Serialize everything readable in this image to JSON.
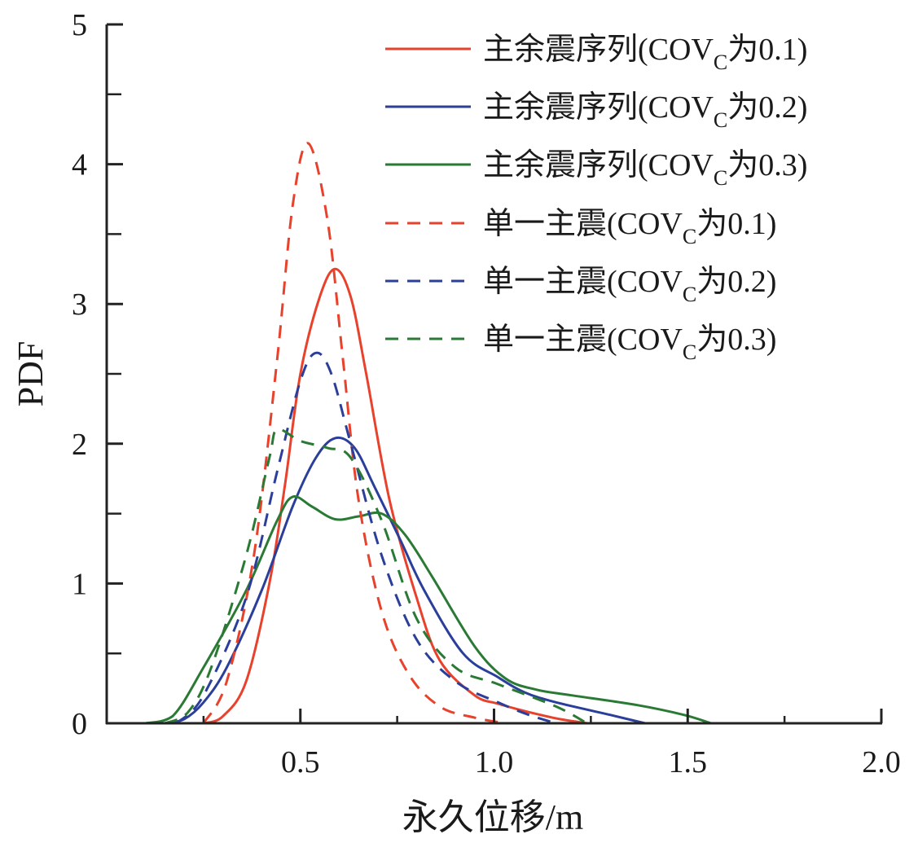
{
  "chart_data": {
    "type": "line",
    "title": "",
    "xlabel": "永久位移/m",
    "ylabel": "PDF",
    "xlim": [
      0,
      2.0
    ],
    "ylim": [
      0,
      5
    ],
    "grid": false,
    "legend_position": "top-right",
    "x_ticks": [
      {
        "value": 0.5,
        "label": "0.5"
      },
      {
        "value": 1.0,
        "label": "1.0"
      },
      {
        "value": 1.5,
        "label": "1.5"
      },
      {
        "value": 2.0,
        "label": "2.0"
      }
    ],
    "x_minor_ticks": [
      0.25,
      0.75,
      1.25,
      1.75
    ],
    "y_ticks": [
      {
        "value": 0,
        "label": "0"
      },
      {
        "value": 1,
        "label": "1"
      },
      {
        "value": 2,
        "label": "2"
      },
      {
        "value": 3,
        "label": "3"
      },
      {
        "value": 4,
        "label": "4"
      },
      {
        "value": 5,
        "label": "5"
      }
    ],
    "y_minor_ticks": [
      0.5,
      1.5,
      2.5,
      3.5,
      4.5
    ],
    "series": [
      {
        "name": "主余震序列(COVC为0.1)",
        "legend_main": "主余震序列(COV",
        "legend_sub": "C",
        "legend_tail": "为0.1)",
        "color": "#e8412c",
        "dash": "solid",
        "x": [
          0.25,
          0.3,
          0.36,
          0.42,
          0.46,
          0.5,
          0.55,
          0.59,
          0.63,
          0.67,
          0.73,
          0.8,
          0.86,
          0.95,
          1.01,
          1.09,
          1.17,
          1.24
        ],
        "y": [
          0.0,
          0.05,
          0.3,
          1.0,
          1.7,
          2.5,
          3.05,
          3.25,
          3.05,
          2.5,
          1.6,
          0.9,
          0.45,
          0.2,
          0.14,
          0.08,
          0.03,
          0.0
        ]
      },
      {
        "name": "主余震序列(COVC为0.2)",
        "legend_main": "主余震序列(COV",
        "legend_sub": "C",
        "legend_tail": "为0.2)",
        "color": "#2b3f9a",
        "dash": "solid",
        "x": [
          0.15,
          0.2,
          0.25,
          0.31,
          0.4,
          0.48,
          0.54,
          0.59,
          0.64,
          0.69,
          0.76,
          0.82,
          0.92,
          1.01,
          1.08,
          1.16,
          1.3,
          1.39
        ],
        "y": [
          0.0,
          0.03,
          0.15,
          0.4,
          0.95,
          1.55,
          1.9,
          2.04,
          1.97,
          1.7,
          1.3,
          0.95,
          0.5,
          0.33,
          0.22,
          0.15,
          0.06,
          0.0
        ]
      },
      {
        "name": "主余震序列(COVC为0.3)",
        "legend_main": "主余震序列(COV",
        "legend_sub": "C",
        "legend_tail": "为0.3)",
        "color": "#2a7a35",
        "dash": "solid",
        "x": [
          0.1,
          0.17,
          0.25,
          0.36,
          0.44,
          0.48,
          0.53,
          0.59,
          0.65,
          0.71,
          0.77,
          0.84,
          0.95,
          1.03,
          1.11,
          1.2,
          1.37,
          1.49,
          1.56
        ],
        "y": [
          0.0,
          0.05,
          0.4,
          0.95,
          1.45,
          1.62,
          1.55,
          1.46,
          1.48,
          1.5,
          1.35,
          1.05,
          0.55,
          0.32,
          0.24,
          0.2,
          0.13,
          0.06,
          0.0
        ]
      },
      {
        "name": "单一主震(COVC为0.1)",
        "legend_main": "单一主震(COV",
        "legend_sub": "C",
        "legend_tail": "为0.1)",
        "color": "#e8412c",
        "dash": "dashed",
        "x": [
          0.25,
          0.31,
          0.38,
          0.44,
          0.48,
          0.52,
          0.57,
          0.61,
          0.65,
          0.71,
          0.78,
          0.86,
          0.95,
          1.03
        ],
        "y": [
          0.0,
          0.3,
          1.2,
          2.6,
          3.7,
          4.15,
          3.6,
          2.6,
          1.6,
          0.8,
          0.35,
          0.12,
          0.04,
          0.0
        ]
      },
      {
        "name": "单一主震(COVC为0.2)",
        "legend_main": "单一主震(COV",
        "legend_sub": "C",
        "legend_tail": "为0.2)",
        "color": "#2b3f9a",
        "dash": "dashed",
        "x": [
          0.18,
          0.25,
          0.36,
          0.44,
          0.5,
          0.54,
          0.58,
          0.63,
          0.71,
          0.8,
          0.9,
          1.01,
          1.09,
          1.16
        ],
        "y": [
          0.0,
          0.2,
          0.9,
          1.8,
          2.45,
          2.65,
          2.5,
          2.0,
          1.2,
          0.6,
          0.3,
          0.15,
          0.06,
          0.0
        ]
      },
      {
        "name": "单一主震(COVC为0.3)",
        "legend_main": "单一主震(COV",
        "legend_sub": "C",
        "legend_tail": "为0.3)",
        "color": "#2a7a35",
        "dash": "dashed",
        "x": [
          0.15,
          0.21,
          0.27,
          0.36,
          0.42,
          0.44,
          0.5,
          0.57,
          0.63,
          0.71,
          0.8,
          0.9,
          1.01,
          1.16,
          1.24
        ],
        "y": [
          0.0,
          0.08,
          0.4,
          1.2,
          1.9,
          2.1,
          2.02,
          1.97,
          1.9,
          1.45,
          0.75,
          0.4,
          0.28,
          0.12,
          0.0
        ]
      }
    ]
  }
}
